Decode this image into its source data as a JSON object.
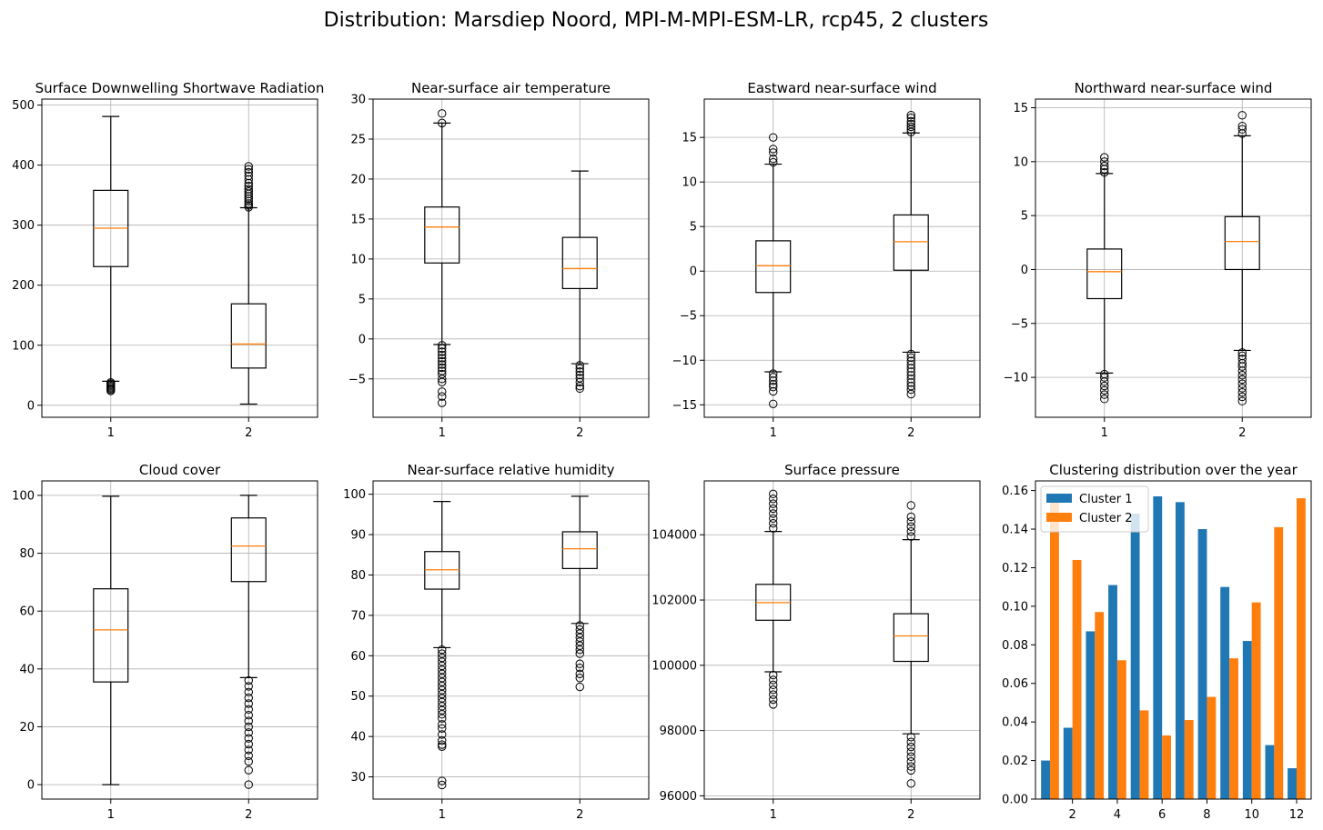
{
  "figure": {
    "suptitle": "Distribution: Marsdiep Noord, MPI-M-MPI-ESM-LR, rcp45, 2 clusters"
  },
  "chart_data": [
    {
      "type": "box",
      "title": "Surface Downwelling Shortwave Radiation",
      "categories": [
        "1",
        "2"
      ],
      "ylim": [
        -20,
        510
      ],
      "yticks": [
        0,
        100,
        200,
        300,
        400,
        500
      ],
      "grid": true,
      "boxes": [
        {
          "whislo": 40,
          "q1": 231,
          "med": 295,
          "q3": 358,
          "whishi": 481,
          "fliers": [
            38,
            36,
            34,
            32,
            30,
            28,
            26,
            24
          ]
        },
        {
          "whislo": 2,
          "q1": 62,
          "med": 102,
          "q3": 169,
          "whishi": 329,
          "fliers": [
            330,
            333,
            336,
            340,
            344,
            348,
            352,
            356,
            360,
            365,
            370,
            376,
            382,
            388,
            393,
            398
          ]
        }
      ]
    },
    {
      "type": "box",
      "title": "Near-surface air temperature",
      "categories": [
        "1",
        "2"
      ],
      "ylim": [
        -9.8,
        30
      ],
      "yticks": [
        -5,
        0,
        5,
        10,
        15,
        20,
        25,
        30
      ],
      "grid": true,
      "boxes": [
        {
          "whislo": -0.7,
          "q1": 9.5,
          "med": 14.0,
          "q3": 16.5,
          "whishi": 27.0,
          "fliers": [
            27.0,
            28.2,
            -0.8,
            -1.2,
            -1.6,
            -2.0,
            -2.4,
            -2.8,
            -3.2,
            -3.6,
            -4.0,
            -4.4,
            -5.0,
            -5.4,
            -6.6,
            -7.2,
            -8.0
          ]
        },
        {
          "whislo": -3.1,
          "q1": 6.3,
          "med": 8.8,
          "q3": 12.7,
          "whishi": 21.0,
          "fliers": [
            -3.3,
            -3.7,
            -4.1,
            -4.5,
            -4.9,
            -5.4,
            -5.9,
            -6.2
          ]
        }
      ]
    },
    {
      "type": "box",
      "title": "Eastward near-surface wind",
      "categories": [
        "1",
        "2"
      ],
      "ylim": [
        -16.4,
        19.3
      ],
      "yticks": [
        -15,
        -10,
        -5,
        0,
        5,
        10,
        15
      ],
      "grid": true,
      "boxes": [
        {
          "whislo": -11.3,
          "q1": -2.4,
          "med": 0.6,
          "q3": 3.4,
          "whishi": 12.0,
          "fliers": [
            12.2,
            12.6,
            13.3,
            13.7,
            15.0,
            -11.5,
            -11.9,
            -12.3,
            -12.7,
            -13.0,
            -13.5,
            -14.9
          ]
        },
        {
          "whislo": -9.1,
          "q1": 0.1,
          "med": 3.3,
          "q3": 6.3,
          "whishi": 15.5,
          "fliers": [
            15.6,
            15.9,
            16.2,
            16.5,
            16.8,
            17.2,
            17.5,
            -9.3,
            -9.7,
            -10.1,
            -10.5,
            -10.9,
            -11.3,
            -11.7,
            -12.1,
            -12.5,
            -12.9,
            -13.3,
            -13.8
          ]
        }
      ]
    },
    {
      "type": "box",
      "title": "Northward near-surface wind",
      "categories": [
        "1",
        "2"
      ],
      "ylim": [
        -13.7,
        15.8
      ],
      "yticks": [
        -10,
        -5,
        0,
        5,
        10,
        15
      ],
      "grid": true,
      "boxes": [
        {
          "whislo": -9.6,
          "q1": -2.7,
          "med": -0.2,
          "q3": 1.9,
          "whishi": 8.9,
          "fliers": [
            9.0,
            9.3,
            9.6,
            10.0,
            10.4,
            -9.7,
            -10.0,
            -10.4,
            -10.8,
            -11.2,
            -11.6,
            -12.0
          ]
        },
        {
          "whislo": -7.5,
          "q1": 0.0,
          "med": 2.6,
          "q3": 4.9,
          "whishi": 12.4,
          "fliers": [
            12.6,
            13.0,
            13.3,
            14.3,
            -7.7,
            -8.0,
            -8.3,
            -8.7,
            -9.0,
            -9.4,
            -9.8,
            -10.2,
            -10.6,
            -11.0,
            -11.4,
            -11.8,
            -12.2
          ]
        }
      ]
    },
    {
      "type": "box",
      "title": "Cloud cover",
      "categories": [
        "1",
        "2"
      ],
      "ylim": [
        -5,
        105
      ],
      "yticks": [
        0,
        20,
        40,
        60,
        80,
        100
      ],
      "grid": true,
      "boxes": [
        {
          "whislo": 0,
          "q1": 35.5,
          "med": 53.5,
          "q3": 67.7,
          "whishi": 99.7,
          "fliers": []
        },
        {
          "whislo": 37,
          "q1": 70.2,
          "med": 82.5,
          "q3": 92.2,
          "whishi": 100,
          "fliers": [
            36,
            34,
            32,
            30,
            28,
            26,
            24,
            22,
            20,
            18,
            16,
            14,
            12,
            10,
            8,
            5,
            0
          ]
        }
      ]
    },
    {
      "type": "box",
      "title": "Near-surface relative humidity",
      "categories": [
        "1",
        "2"
      ],
      "ylim": [
        24.5,
        103.3
      ],
      "yticks": [
        30,
        40,
        50,
        60,
        70,
        80,
        90,
        100
      ],
      "grid": true,
      "boxes": [
        {
          "whislo": 62,
          "q1": 76.5,
          "med": 81.3,
          "q3": 85.8,
          "whishi": 98.2,
          "fliers": [
            61.5,
            60.5,
            59.5,
            58.5,
            57.5,
            56.5,
            55.5,
            54.5,
            53.5,
            52.5,
            51.5,
            50.5,
            49.5,
            48.5,
            47.5,
            46.5,
            45.5,
            44.5,
            43,
            42,
            40.5,
            39,
            38,
            37.5,
            29,
            28
          ]
        },
        {
          "whislo": 68,
          "q1": 81.6,
          "med": 86.5,
          "q3": 90.7,
          "whishi": 99.5,
          "fliers": [
            67.5,
            66.5,
            65.5,
            64.5,
            63.5,
            62.5,
            61.5,
            60.5,
            58,
            57,
            55.5,
            54.5,
            52.3
          ]
        }
      ]
    },
    {
      "type": "box",
      "title": "Surface pressure",
      "categories": [
        "1",
        "2"
      ],
      "ylim": [
        95900,
        105650
      ],
      "yticks": [
        96000,
        98000,
        100000,
        102000,
        104000
      ],
      "grid": true,
      "boxes": [
        {
          "whislo": 99800,
          "q1": 101380,
          "med": 101920,
          "q3": 102480,
          "whishi": 104100,
          "fliers": [
            104200,
            104350,
            104500,
            104650,
            104800,
            104950,
            105100,
            105250,
            99700,
            99550,
            99400,
            99250,
            99100,
            98950,
            98800
          ]
        },
        {
          "whislo": 97900,
          "q1": 100120,
          "med": 100900,
          "q3": 101580,
          "whishi": 103850,
          "fliers": [
            103950,
            104100,
            104250,
            104400,
            104550,
            104900,
            97800,
            97650,
            97500,
            97350,
            97200,
            97050,
            96900,
            96780,
            96380
          ]
        }
      ]
    },
    {
      "type": "bar",
      "title": "Clustering distribution over the year",
      "categories": [
        1,
        2,
        3,
        4,
        5,
        6,
        7,
        8,
        9,
        10,
        11,
        12
      ],
      "xticks": [
        2,
        4,
        6,
        8,
        10,
        12
      ],
      "ylim": [
        0,
        0.165
      ],
      "yticks": [
        0.0,
        0.02,
        0.04,
        0.06,
        0.08,
        0.1,
        0.12,
        0.14,
        0.16
      ],
      "legend": "top-left",
      "grid": false,
      "series": [
        {
          "name": "Cluster 1",
          "color": "#1f77b4",
          "values": [
            0.02,
            0.037,
            0.087,
            0.111,
            0.148,
            0.157,
            0.154,
            0.14,
            0.11,
            0.082,
            0.028,
            0.016
          ]
        },
        {
          "name": "Cluster 2",
          "color": "#ff7f0e",
          "values": [
            0.154,
            0.124,
            0.097,
            0.072,
            0.046,
            0.033,
            0.041,
            0.053,
            0.073,
            0.102,
            0.141,
            0.156
          ]
        }
      ]
    }
  ]
}
